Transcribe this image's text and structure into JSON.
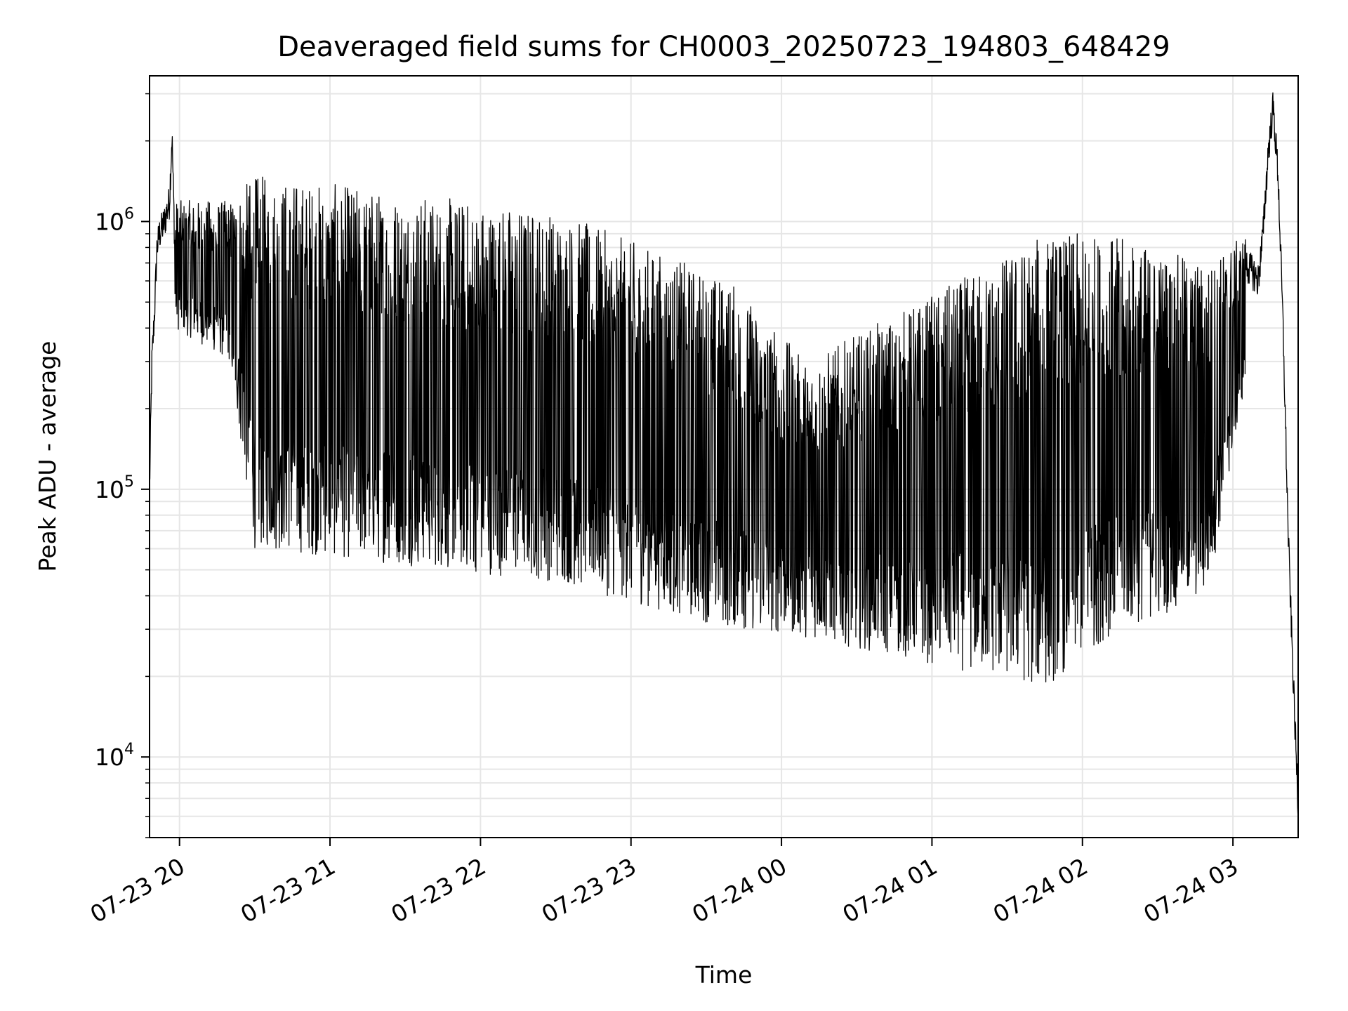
{
  "chart_data": {
    "type": "line",
    "title": "Deaveraged field sums for CH0003_20250723_194803_648429",
    "xlabel": "Time",
    "ylabel": "Peak ADU - average",
    "yscale": "log",
    "ylim": [
      5000,
      3500000
    ],
    "xlim": [
      "2025-07-23T19:48:03",
      "2025-07-24T03:26:00"
    ],
    "grid": true,
    "line_color": "#000000",
    "grid_color": "#e6e6e6",
    "x_ticks": [
      {
        "value": "2025-07-23T20:00:00",
        "label": "07-23 20"
      },
      {
        "value": "2025-07-23T21:00:00",
        "label": "07-23 21"
      },
      {
        "value": "2025-07-23T22:00:00",
        "label": "07-23 22"
      },
      {
        "value": "2025-07-23T23:00:00",
        "label": "07-23 23"
      },
      {
        "value": "2025-07-24T00:00:00",
        "label": "07-24 00"
      },
      {
        "value": "2025-07-24T01:00:00",
        "label": "07-24 01"
      },
      {
        "value": "2025-07-24T02:00:00",
        "label": "07-24 02"
      },
      {
        "value": "2025-07-24T03:00:00",
        "label": "07-24 03"
      }
    ],
    "y_ticks": [
      {
        "value": 10000,
        "base": "10",
        "exp": "4"
      },
      {
        "value": 100000,
        "base": "10",
        "exp": "5"
      },
      {
        "value": 1000000,
        "base": "10",
        "exp": "6"
      }
    ],
    "series": [
      {
        "x": [
          "2025-07-23T19:48:03",
          "2025-07-23T19:49:00",
          "2025-07-23T19:50:00",
          "2025-07-23T19:51:00",
          "2025-07-23T19:52:00",
          "2025-07-23T19:54:00",
          "2025-07-23T19:56:00",
          "2025-07-23T19:57:00",
          "2025-07-23T19:58:00",
          "2025-07-23T20:00:00",
          "2025-07-23T20:02:00",
          "2025-07-23T20:04:00",
          "2025-07-23T20:06:00",
          "2025-07-23T20:08:00",
          "2025-07-23T20:10:00",
          "2025-07-23T20:12:00",
          "2025-07-23T20:14:00",
          "2025-07-23T20:16:00",
          "2025-07-23T20:18:00",
          "2025-07-23T20:20:00",
          "2025-07-23T20:25:00",
          "2025-07-23T20:30:00",
          "2025-07-23T20:40:00",
          "2025-07-23T20:50:00",
          "2025-07-23T21:00:00",
          "2025-07-23T21:15:00",
          "2025-07-23T21:30:00",
          "2025-07-23T21:45:00",
          "2025-07-23T22:00:00",
          "2025-07-23T22:15:00",
          "2025-07-23T22:30:00",
          "2025-07-23T22:45:00",
          "2025-07-23T23:00:00",
          "2025-07-23T23:15:00",
          "2025-07-23T23:30:00",
          "2025-07-23T23:45:00",
          "2025-07-24T00:00:00",
          "2025-07-24T00:10:00",
          "2025-07-24T00:20:00",
          "2025-07-24T00:30:00",
          "2025-07-24T00:45:00",
          "2025-07-24T01:00:00",
          "2025-07-24T01:15:00",
          "2025-07-24T01:30:00",
          "2025-07-24T01:45:00",
          "2025-07-24T02:00:00",
          "2025-07-24T02:15:00",
          "2025-07-24T02:30:00",
          "2025-07-24T02:40:00",
          "2025-07-24T02:50:00",
          "2025-07-24T02:55:00",
          "2025-07-24T03:00:00",
          "2025-07-24T03:05:00",
          "2025-07-24T03:08:00",
          "2025-07-24T03:10:00",
          "2025-07-24T03:12:00",
          "2025-07-24T03:14:00",
          "2025-07-24T03:16:00",
          "2025-07-24T03:18:00",
          "2025-07-24T03:20:00",
          "2025-07-24T03:22:00",
          "2025-07-24T03:24:00",
          "2025-07-24T03:26:00"
        ],
        "y": [
          100000,
          300000,
          450000,
          800000,
          900000,
          1000000,
          1200000,
          2100000,
          900000,
          800000,
          700000,
          600000,
          650000,
          700000,
          600000,
          650000,
          700000,
          600000,
          650000,
          500000,
          350000,
          300000,
          280000,
          270000,
          260000,
          250000,
          230000,
          220000,
          200000,
          150000,
          120000,
          90000,
          70000,
          60000,
          45000,
          38000,
          36000,
          40000,
          45000,
          40000,
          30000,
          28000,
          30000,
          32000,
          35000,
          38000,
          45000,
          45000,
          55000,
          70000,
          250000,
          350000,
          700000,
          650000,
          600000,
          900000,
          1800000,
          2700000,
          1500000,
          400000,
          70000,
          20000,
          6500
        ]
      }
    ],
    "fluctuation": {
      "x_segments": [
        "2025-07-23T19:58:00",
        "2025-07-23T20:20:00",
        "2025-07-23T20:30:00",
        "2025-07-23T22:30:00",
        "2025-07-23T23:40:00",
        "2025-07-24T00:10:00",
        "2025-07-24T01:45:00",
        "2025-07-24T02:10:00",
        "2025-07-24T02:50:00",
        "2025-07-24T03:05:00"
      ],
      "low": [
        400000,
        300000,
        60000,
        45000,
        30000,
        28000,
        18000,
        28000,
        40000,
        250000
      ],
      "high": [
        1200000,
        1200000,
        1500000,
        1100000,
        600000,
        300000,
        900000,
        900000,
        700000,
        900000
      ]
    }
  }
}
